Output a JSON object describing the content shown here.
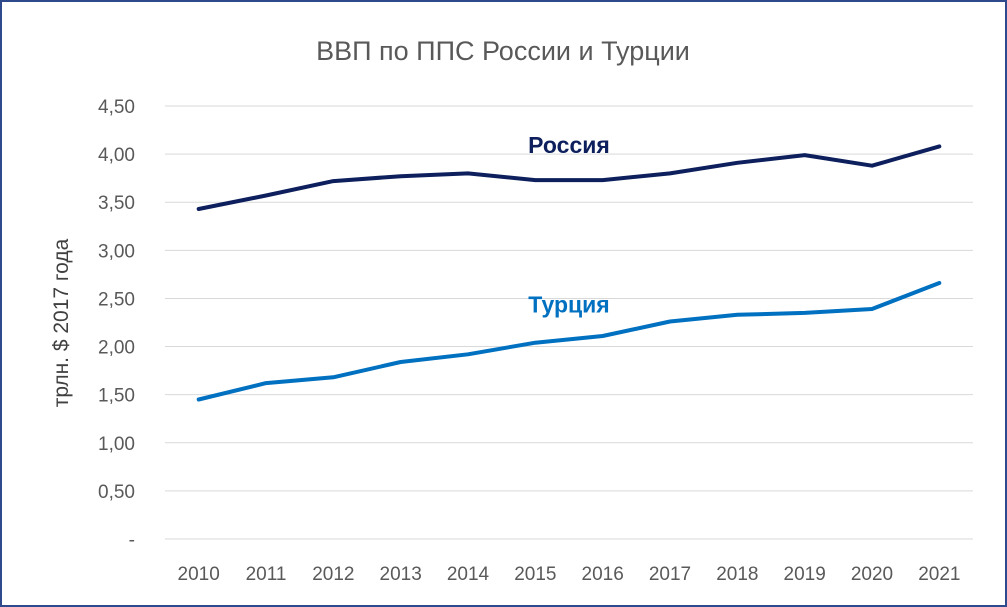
{
  "chart_data": {
    "type": "line",
    "title": "ВВП по ППС России и Турции",
    "xlabel": "",
    "ylabel": "трлн. $ 2017 года",
    "x": [
      "2010",
      "2011",
      "2012",
      "2013",
      "2014",
      "2015",
      "2016",
      "2017",
      "2018",
      "2019",
      "2020",
      "2021"
    ],
    "ylim": [
      0,
      4.5
    ],
    "yticks": [
      0,
      0.5,
      1.0,
      1.5,
      2.0,
      2.5,
      3.0,
      3.5,
      4.0,
      4.5
    ],
    "ytick_labels": [
      "-",
      "0,50",
      "1,00",
      "1,50",
      "2,00",
      "2,50",
      "3,00",
      "3,50",
      "4,00",
      "4,50"
    ],
    "grid": true,
    "series": [
      {
        "name": "Россия",
        "color": "#0d1f5c",
        "values": [
          3.43,
          3.57,
          3.72,
          3.77,
          3.8,
          3.73,
          3.73,
          3.8,
          3.91,
          3.99,
          3.88,
          4.08
        ]
      },
      {
        "name": "Турция",
        "color": "#0070c0",
        "values": [
          1.45,
          1.62,
          1.68,
          1.84,
          1.92,
          2.04,
          2.11,
          2.26,
          2.33,
          2.35,
          2.39,
          2.66
        ]
      }
    ]
  }
}
